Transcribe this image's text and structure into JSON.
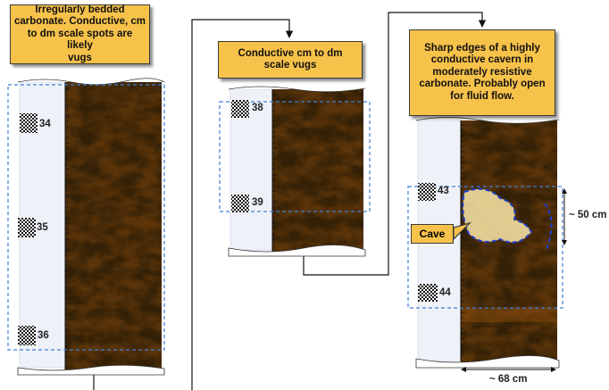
{
  "callouts": {
    "left": "Irregularly bedded\ncarbonate.  Conductive, cm\nto dm scale spots are likely\nvugs",
    "middle": "Conductive cm to dm\nscale vugs",
    "right": "Sharp edges of a highly\nconductive cavern in\nmoderately resistive\ncarbonate. Probably open\nfor fluid flow."
  },
  "depth_labels": {
    "left": [
      "34",
      "35",
      "36"
    ],
    "middle": [
      "38",
      "39"
    ],
    "right": [
      "43",
      "44"
    ]
  },
  "cave_label": "Cave",
  "dimensions": {
    "height": "~ 50 cm",
    "width": "~ 68 cm"
  },
  "colors": {
    "callout_fill": "#f7c24a",
    "dashed_box": "#3f7fd6",
    "cave_outline": "#1f3fc8",
    "image_dark": "#3a1d05",
    "image_light": "#f3c85e"
  }
}
